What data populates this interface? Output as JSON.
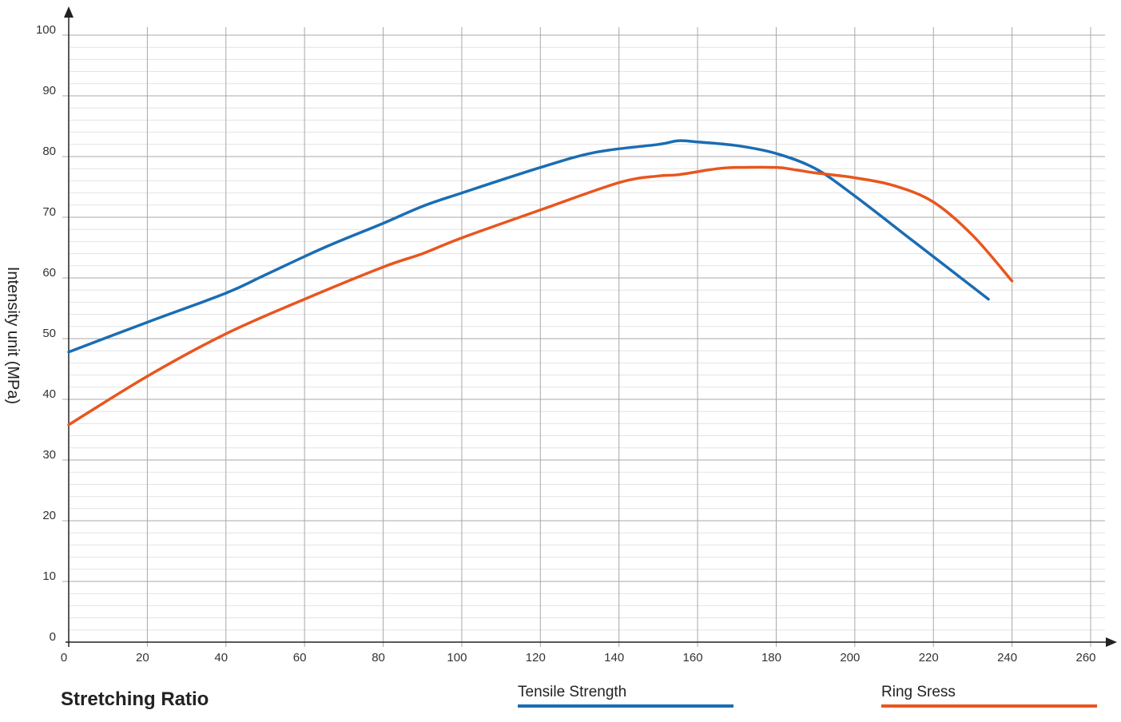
{
  "chart_data": {
    "type": "line",
    "title": "",
    "xlabel": "Stretching Ratio",
    "ylabel": "Intensity unit (MPa)",
    "xlim": [
      0,
      260
    ],
    "ylim": [
      0,
      100
    ],
    "x_ticks": [
      0,
      20,
      40,
      60,
      80,
      100,
      120,
      140,
      160,
      180,
      200,
      220,
      240,
      260
    ],
    "y_ticks": [
      0,
      10,
      20,
      30,
      40,
      50,
      60,
      70,
      80,
      90,
      100
    ],
    "grid": true,
    "legend_position": "bottom",
    "series": [
      {
        "name": "Tensile Strength",
        "color": "#1a6db3",
        "x": [
          0,
          20,
          40,
          50,
          65,
          80,
          90,
          100,
          120,
          134,
          150,
          155,
          160,
          170,
          180,
          190,
          200,
          215,
          234
        ],
        "y": [
          47.8,
          52.7,
          57.5,
          60.5,
          65.0,
          69.0,
          71.8,
          74.0,
          78.2,
          80.7,
          82.0,
          82.6,
          82.4,
          81.8,
          80.5,
          78.0,
          73.5,
          66.0,
          56.5
        ]
      },
      {
        "name": "Ring Sress",
        "color": "#e8561e",
        "x": [
          0,
          20,
          40,
          60,
          80,
          90,
          100,
          120,
          140,
          150,
          155,
          165,
          170,
          180,
          185,
          190,
          200,
          210,
          220,
          230,
          240
        ],
        "y": [
          35.8,
          43.8,
          50.8,
          56.5,
          61.8,
          64.0,
          66.6,
          71.2,
          75.7,
          76.8,
          77.0,
          78.0,
          78.2,
          78.2,
          77.8,
          77.3,
          76.5,
          75.2,
          72.5,
          67.0,
          59.5
        ]
      }
    ]
  }
}
